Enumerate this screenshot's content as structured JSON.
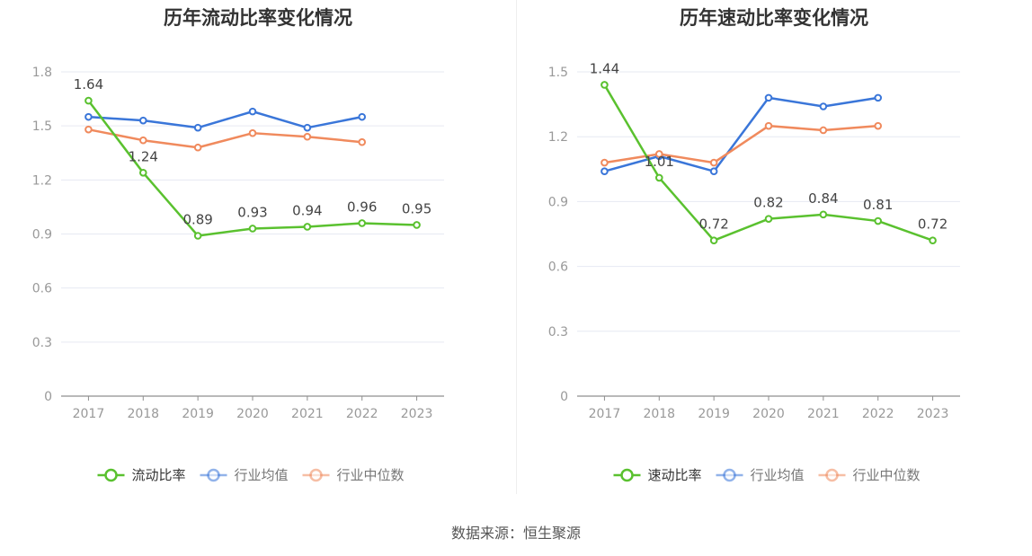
{
  "source_text": "数据来源：恒生聚源",
  "colors": {
    "main": "#5ac12f",
    "avg": "#3a76d9",
    "median": "#f08a5d",
    "grid": "#e6e9f2",
    "axis": "#8f8f8f",
    "tick": "#999999",
    "label": "#444444"
  },
  "chart_data": [
    {
      "type": "line",
      "title": "历年流动比率变化情况",
      "categories": [
        "2017",
        "2018",
        "2019",
        "2020",
        "2021",
        "2022",
        "2023"
      ],
      "ylim": [
        0,
        1.8
      ],
      "yticks": [
        "0",
        "0.3",
        "0.6",
        "0.9",
        "1.2",
        "1.5",
        "1.8"
      ],
      "legend_position": "bottom",
      "series": [
        {
          "name": "流动比率",
          "color": "#5ac12f",
          "labeled": true,
          "values": [
            1.64,
            1.24,
            0.89,
            0.93,
            0.94,
            0.96,
            0.95
          ],
          "labels": [
            "1.64",
            "1.24",
            "0.89",
            "0.93",
            "0.94",
            "0.96",
            "0.95"
          ]
        },
        {
          "name": "行业均值",
          "color": "#3a76d9",
          "labeled": false,
          "values": [
            1.55,
            1.53,
            1.49,
            1.58,
            1.49,
            1.55,
            null
          ]
        },
        {
          "name": "行业中位数",
          "color": "#f08a5d",
          "labeled": false,
          "values": [
            1.48,
            1.42,
            1.38,
            1.46,
            1.44,
            1.41,
            null
          ]
        }
      ]
    },
    {
      "type": "line",
      "title": "历年速动比率变化情况",
      "categories": [
        "2017",
        "2018",
        "2019",
        "2020",
        "2021",
        "2022",
        "2023"
      ],
      "ylim": [
        0,
        1.5
      ],
      "yticks": [
        "0",
        "0.3",
        "0.6",
        "0.9",
        "1.2",
        "1.5"
      ],
      "legend_position": "bottom",
      "series": [
        {
          "name": "速动比率",
          "color": "#5ac12f",
          "labeled": true,
          "values": [
            1.44,
            1.01,
            0.72,
            0.82,
            0.84,
            0.81,
            0.72
          ],
          "labels": [
            "1.44",
            "1.01",
            "0.72",
            "0.82",
            "0.84",
            "0.81",
            "0.72"
          ]
        },
        {
          "name": "行业均值",
          "color": "#3a76d9",
          "labeled": false,
          "values": [
            1.04,
            1.11,
            1.04,
            1.38,
            1.34,
            1.38,
            null
          ]
        },
        {
          "name": "行业中位数",
          "color": "#f08a5d",
          "labeled": false,
          "values": [
            1.08,
            1.12,
            1.08,
            1.25,
            1.23,
            1.25,
            null
          ]
        }
      ]
    }
  ]
}
